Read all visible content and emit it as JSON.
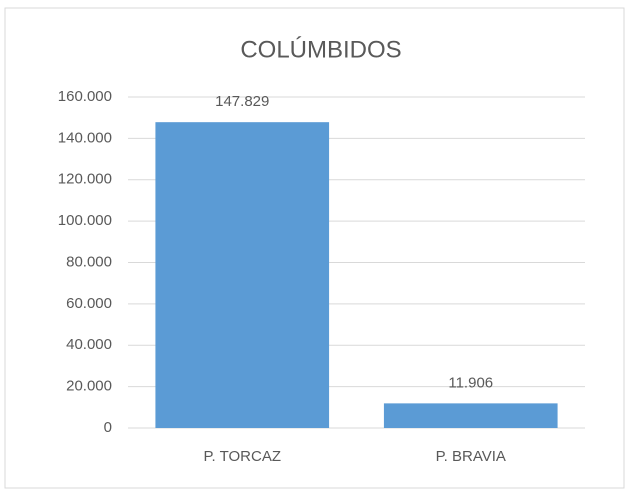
{
  "chart_data": {
    "type": "bar",
    "title": "COLÚMBIDOS",
    "categories": [
      "P. TORCAZ",
      "P. BRAVIA"
    ],
    "values": [
      147829,
      11906
    ],
    "value_labels": [
      "147.829",
      "11.906"
    ],
    "color": "#5b9bd5",
    "ylim": [
      0,
      160000
    ],
    "yticks": [
      0,
      {
        "value": 20000,
        "label": "20.000"
      },
      {
        "value": 40000,
        "label": "40.000"
      },
      {
        "value": 60000,
        "label": "60.000"
      },
      {
        "value": 80000,
        "label": "80.000"
      },
      {
        "value": 100000,
        "label": "100.000"
      },
      {
        "value": 120000,
        "label": "120.000"
      },
      {
        "value": 140000,
        "label": "140.000"
      },
      {
        "value": 160000,
        "label": "160.000"
      }
    ],
    "grid": true
  }
}
